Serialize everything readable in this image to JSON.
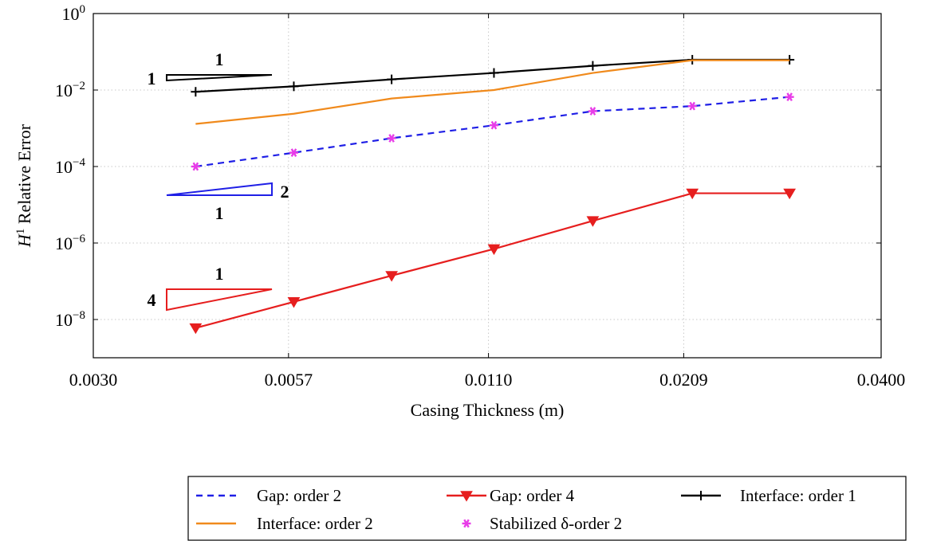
{
  "chart_data": {
    "type": "line",
    "xlabel": "Casing Thickness (m)",
    "ylabel": "H^1 Relative Error",
    "x_scale": "log",
    "y_scale": "log",
    "xlim": [
      0.003,
      0.04
    ],
    "ylim": [
      1e-09,
      1
    ],
    "grid": true,
    "legend_placement": "below",
    "x_ticks": [
      {
        "value": 0.003,
        "label": "0.0030"
      },
      {
        "value": 0.0057,
        "label": "0.0057"
      },
      {
        "value": 0.011,
        "label": "0.0110"
      },
      {
        "value": 0.0209,
        "label": "0.0209"
      },
      {
        "value": 0.04,
        "label": "0.0400"
      }
    ],
    "y_ticks": [
      {
        "value": 1,
        "base": "10",
        "exp": "0"
      },
      {
        "value": 0.01,
        "base": "10",
        "exp": "−2"
      },
      {
        "value": 0.0001,
        "base": "10",
        "exp": "−4"
      },
      {
        "value": 1e-06,
        "base": "10",
        "exp": "−6"
      },
      {
        "value": 1e-08,
        "base": "10",
        "exp": "−8"
      }
    ],
    "series": [
      {
        "name": "Gap: order 2",
        "color": "#1f1fe6",
        "style": "dashed",
        "marker": "none",
        "x": [
          0.0042,
          0.0058,
          0.008,
          0.0112,
          0.0155,
          0.0215,
          0.0296
        ],
        "y": [
          0.0001,
          0.00023,
          0.00055,
          0.0012,
          0.0028,
          0.0038,
          0.0066
        ]
      },
      {
        "name": "Gap: order 4",
        "color": "#e61e1e",
        "style": "solid",
        "marker": "triangle-down",
        "x": [
          0.0042,
          0.0058,
          0.008,
          0.0112,
          0.0155,
          0.0215,
          0.0296
        ],
        "y": [
          6e-09,
          2.9e-08,
          1.4e-07,
          7e-07,
          3.8e-06,
          2e-05,
          2e-05
        ]
      },
      {
        "name": "Interface: order 1",
        "color": "#000000",
        "style": "solid",
        "marker": "plus",
        "x": [
          0.0042,
          0.0058,
          0.008,
          0.0112,
          0.0155,
          0.0215,
          0.0296
        ],
        "y": [
          0.009,
          0.0125,
          0.019,
          0.028,
          0.043,
          0.062,
          0.062
        ]
      },
      {
        "name": "Interface: order 2",
        "color": "#f08a1c",
        "style": "solid",
        "marker": "none",
        "x": [
          0.0042,
          0.0058,
          0.008,
          0.0112,
          0.0155,
          0.0215,
          0.0296
        ],
        "y": [
          0.0013,
          0.0024,
          0.006,
          0.01,
          0.028,
          0.06,
          0.06
        ]
      },
      {
        "name": "Stabilized δ-order 2",
        "color": "#e83ce8",
        "style": "none",
        "marker": "asterisk",
        "x": [
          0.0042,
          0.0058,
          0.008,
          0.0112,
          0.0155,
          0.0215,
          0.0296
        ],
        "y": [
          0.0001,
          0.00023,
          0.00055,
          0.0012,
          0.0028,
          0.0038,
          0.0066
        ]
      }
    ],
    "slope_triangles": [
      {
        "color": "#000000",
        "rise_label": "1",
        "run_label": "1"
      },
      {
        "color": "#1f1fe6",
        "rise_label": "2",
        "run_label": "1"
      },
      {
        "color": "#e61e1e",
        "rise_label": "4",
        "run_label": "1"
      }
    ]
  }
}
